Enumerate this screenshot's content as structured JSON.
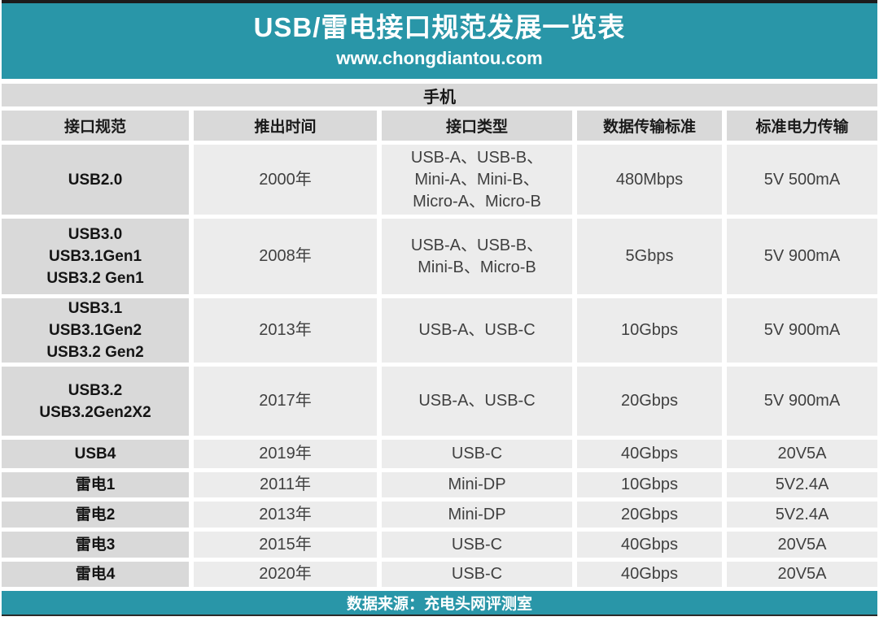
{
  "colors": {
    "accent_teal": "#2996A8",
    "header_gray": "#D9D9D9",
    "cell_gray": "#ECECEC",
    "bar_black": "#1c1c1c"
  },
  "banner": {
    "title": "USB/雷电接口规范发展一览表",
    "subtitle": "www.chongdiantou.com"
  },
  "section_label": "手机",
  "footer": {
    "source": "数据来源：充电头网评测室"
  },
  "chart_data": {
    "type": "table",
    "title": "USB/雷电接口规范发展一览表",
    "subtitle": "www.chongdiantou.com",
    "section": "手机",
    "columns": [
      "接口规范",
      "推出时间",
      "接口类型",
      "数据传输标准",
      "标准电力传输"
    ],
    "rows": [
      [
        "USB2.0",
        "2000年",
        "USB-A、USB-B、\nMini-A、Mini-B、\nMicro-A、Micro-B",
        "480Mbps",
        "5V 500mA"
      ],
      [
        "USB3.0\nUSB3.1Gen1\nUSB3.2 Gen1",
        "2008年",
        "USB-A、USB-B、\nMini-B、Micro-B",
        "5Gbps",
        "5V 900mA"
      ],
      [
        "USB3.1\nUSB3.1Gen2\nUSB3.2 Gen2",
        "2013年",
        "USB-A、USB-C",
        "10Gbps",
        "5V 900mA"
      ],
      [
        "USB3.2\nUSB3.2Gen2X2",
        "2017年",
        "USB-A、USB-C",
        "20Gbps",
        "5V 900mA"
      ],
      [
        "USB4",
        "2019年",
        "USB-C",
        "40Gbps",
        "20V5A"
      ],
      [
        "雷电1",
        "2011年",
        "Mini-DP",
        "10Gbps",
        "5V2.4A"
      ],
      [
        "雷电2",
        "2013年",
        "Mini-DP",
        "20Gbps",
        "5V2.4A"
      ],
      [
        "雷电3",
        "2015年",
        "USB-C",
        "40Gbps",
        "20V5A"
      ],
      [
        "雷电4",
        "2020年",
        "USB-C",
        "40Gbps",
        "20V5A"
      ]
    ],
    "source_note": "数据来源：充电头网评测室"
  }
}
